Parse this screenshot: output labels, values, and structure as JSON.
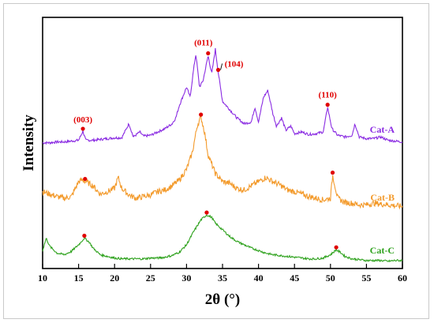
{
  "chart_data": {
    "type": "line",
    "title": "",
    "xlabel": "2θ (°)",
    "ylabel": "Intensity",
    "xlim": [
      10,
      60
    ],
    "xticks": [
      "10",
      "15",
      "20",
      "25",
      "30",
      "35",
      "40",
      "45",
      "50",
      "55",
      "60"
    ],
    "grid": false,
    "colors": {
      "Cat-A": "#8a2be2",
      "Cat-B": "#f39a2b",
      "Cat-C": "#2fa21e",
      "marker": "#e00000"
    },
    "series": [
      {
        "name": "Cat-A",
        "x": [
          10,
          11,
          12,
          13,
          14,
          15,
          15.6,
          16,
          17,
          18,
          19,
          20,
          21,
          22,
          22.6,
          23.5,
          24,
          25,
          26,
          27,
          28,
          28.5,
          29,
          30,
          30.5,
          31,
          31.3,
          31.8,
          32.3,
          33,
          33.5,
          34,
          34.4,
          35,
          36,
          37,
          38,
          39,
          39.5,
          40,
          40.7,
          41.3,
          42,
          42.5,
          43.2,
          43.8,
          44.5,
          45,
          46,
          47,
          48,
          49,
          49.6,
          50.2,
          51,
          52,
          53,
          53.4,
          54,
          55,
          56,
          57,
          58,
          59,
          60
        ],
        "values": [
          5,
          5,
          6,
          6,
          7,
          8,
          19,
          8,
          8,
          9,
          10,
          11,
          11,
          28,
          12,
          18,
          13,
          14,
          18,
          22,
          28,
          35,
          50,
          72,
          60,
          95,
          112,
          72,
          80,
          110,
          88,
          118,
          90,
          55,
          45,
          35,
          28,
          30,
          48,
          30,
          60,
          68,
          40,
          25,
          35,
          20,
          25,
          16,
          18,
          15,
          16,
          18,
          48,
          22,
          14,
          12,
          14,
          28,
          12,
          10,
          10,
          12,
          8,
          7,
          6
        ]
      },
      {
        "name": "Cat-B",
        "x": [
          10,
          11,
          12,
          13,
          14,
          15,
          15.5,
          16,
          17,
          18,
          19,
          20,
          20.5,
          21,
          22,
          23,
          24,
          25,
          26,
          27,
          28,
          29,
          30,
          30.8,
          31.5,
          32,
          32.5,
          33,
          34,
          35,
          36,
          37,
          38,
          39,
          40,
          41,
          42,
          43,
          44,
          45,
          46,
          47,
          48,
          49,
          50,
          50.3,
          51,
          52,
          53,
          54,
          55,
          56,
          57,
          58,
          59,
          60
        ],
        "values": [
          28,
          25,
          22,
          20,
          22,
          40,
          42,
          40,
          35,
          25,
          28,
          32,
          45,
          32,
          24,
          20,
          22,
          24,
          28,
          30,
          35,
          42,
          55,
          75,
          108,
          118,
          100,
          72,
          50,
          40,
          38,
          32,
          30,
          35,
          40,
          45,
          40,
          36,
          30,
          28,
          25,
          22,
          20,
          18,
          20,
          48,
          20,
          15,
          14,
          12,
          12,
          14,
          13,
          12,
          11,
          10
        ]
      },
      {
        "name": "Cat-C",
        "x": [
          10,
          10.5,
          11,
          12,
          13,
          14,
          15,
          15.8,
          16.5,
          17,
          18,
          19,
          20,
          21,
          22,
          23,
          24,
          25,
          26,
          27,
          28,
          29,
          30,
          31,
          32,
          32.8,
          33.5,
          34,
          35,
          36,
          37,
          38,
          39,
          40,
          41,
          42,
          43,
          44,
          45,
          46,
          47,
          48,
          49,
          50,
          50.8,
          51.5,
          52,
          53,
          54,
          55,
          56,
          57,
          58,
          59,
          60
        ],
        "values": [
          15,
          30,
          20,
          12,
          10,
          14,
          22,
          30,
          25,
          18,
          10,
          8,
          6,
          5,
          5,
          5,
          5,
          6,
          6,
          7,
          9,
          13,
          22,
          38,
          52,
          58,
          55,
          48,
          40,
          32,
          26,
          22,
          18,
          15,
          12,
          10,
          9,
          8,
          7,
          6,
          5,
          5,
          6,
          10,
          16,
          12,
          8,
          5,
          4,
          3,
          3,
          3,
          2,
          3,
          3
        ]
      }
    ],
    "peak_markers": [
      {
        "series": "Cat-A",
        "x": 15.6,
        "label": "(003)"
      },
      {
        "series": "Cat-A",
        "x": 33.0,
        "label": "(011)"
      },
      {
        "series": "Cat-A",
        "x": 34.4,
        "label": "(104)"
      },
      {
        "series": "Cat-A",
        "x": 49.6,
        "label": "(110)"
      },
      {
        "series": "Cat-B",
        "x": 15.9,
        "label": ""
      },
      {
        "series": "Cat-B",
        "x": 32.0,
        "label": ""
      },
      {
        "series": "Cat-B",
        "x": 50.3,
        "label": ""
      },
      {
        "series": "Cat-C",
        "x": 15.8,
        "label": ""
      },
      {
        "series": "Cat-C",
        "x": 32.8,
        "label": ""
      },
      {
        "series": "Cat-C",
        "x": 50.8,
        "label": ""
      }
    ]
  }
}
